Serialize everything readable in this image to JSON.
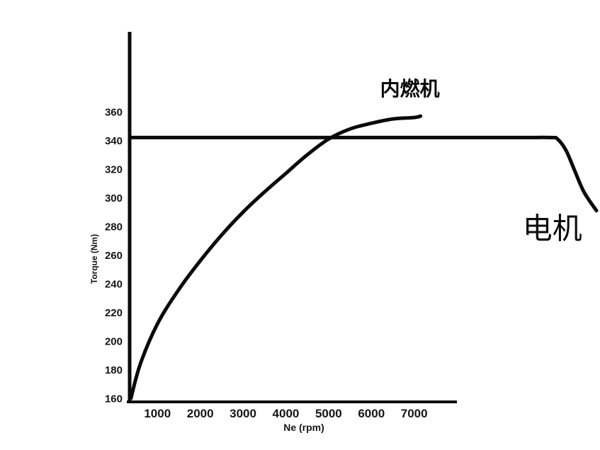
{
  "chart_data": {
    "type": "line",
    "title": "",
    "xlabel": "Ne (rpm)",
    "ylabel": "Torque (Nm)",
    "x_ticks": [
      1000,
      2000,
      3000,
      4000,
      5000,
      6000,
      7000
    ],
    "y_ticks": [
      160,
      180,
      200,
      220,
      240,
      260,
      280,
      300,
      320,
      340,
      360
    ],
    "xlim": [
      350,
      8000
    ],
    "ylim": [
      160,
      416
    ],
    "grid": false,
    "legend_position": "none",
    "line_color": "#0a0a0a",
    "series": [
      {
        "key": "ice-engine",
        "name": "内燃机",
        "points": [
          [
            380,
            160
          ],
          [
            600,
            184
          ],
          [
            1000,
            212
          ],
          [
            1500,
            236
          ],
          [
            2000,
            256
          ],
          [
            2500,
            274
          ],
          [
            3000,
            290
          ],
          [
            3500,
            304
          ],
          [
            4000,
            317
          ],
          [
            4500,
            330
          ],
          [
            5000,
            341
          ],
          [
            5500,
            348
          ],
          [
            6000,
            352
          ],
          [
            6500,
            355
          ],
          [
            7000,
            356
          ],
          [
            7150,
            357
          ]
        ]
      },
      {
        "key": "electric-motor",
        "name": "电机",
        "points": [
          [
            380,
            342
          ],
          [
            2000,
            342
          ],
          [
            4000,
            342
          ],
          [
            6000,
            342
          ],
          [
            8000,
            342
          ],
          [
            9500,
            342
          ],
          [
            10200,
            342
          ],
          [
            10350,
            341
          ],
          [
            10550,
            333
          ],
          [
            10750,
            319
          ],
          [
            10970,
            304
          ],
          [
            11260,
            291
          ]
        ]
      }
    ],
    "annotations": [
      {
        "text": "内燃机",
        "x": 6900,
        "y": 377
      },
      {
        "text": "电机",
        "x": 10230,
        "y": 280
      }
    ]
  }
}
